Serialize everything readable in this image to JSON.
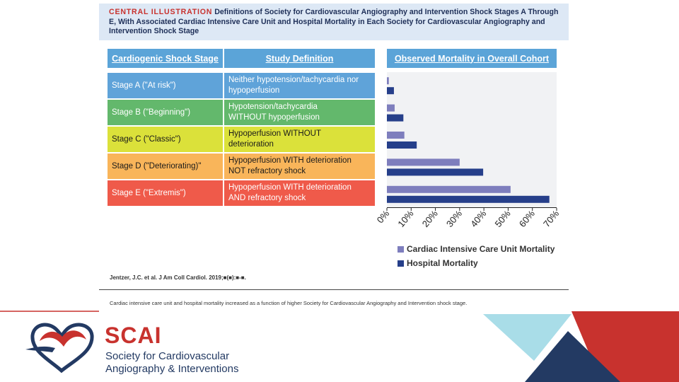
{
  "header": {
    "label": "CENTRAL ILLUSTRATION",
    "title": "Definitions of Society for Cardiovascular Angiography and Intervention Shock Stages A Through E, With Associated Cardiac Intensive Care Unit and Hospital Mortality in Each Society for Cardiovascular Angiography and Intervention Shock Stage"
  },
  "table": {
    "headers": [
      "Cardiogenic Shock Stage",
      "Study Definition"
    ],
    "rows": [
      {
        "stage": "Stage A (\"At risk\")",
        "def1": "Neither hypotension/tachycardia nor",
        "def2": "hypoperfusion",
        "color": "#5fa3d9",
        "text_color": "#ffffff"
      },
      {
        "stage": "Stage B (\"Beginning\")",
        "def1": "Hypotension/tachycardia",
        "def2": "WITHOUT hypoperfusion",
        "color": "#63b86c",
        "text_color": "#ffffff"
      },
      {
        "stage": "Stage C (\"Classic\")",
        "def1": "Hypoperfusion WITHOUT",
        "def2": "deterioration",
        "color": "#dbe13a",
        "text_color": "#1a1a1a"
      },
      {
        "stage": "Stage D (\"Deteriorating)\"",
        "def1": "Hypoperfusion WITH deterioration",
        "def2": "NOT refractory shock",
        "color": "#f9b55a",
        "text_color": "#1a1a1a"
      },
      {
        "stage": "Stage E (\"Extremis\")",
        "def1": "Hypoperfusion WITH deterioration",
        "def2": "AND refractory shock",
        "color": "#ef5a4a",
        "text_color": "#ffffff"
      }
    ]
  },
  "chart_data": {
    "type": "bar",
    "orientation": "horizontal",
    "title": "Observed Mortality in Overall Cohort",
    "categories": [
      "Stage A",
      "Stage B",
      "Stage C",
      "Stage D",
      "Stage E"
    ],
    "series": [
      {
        "name": "Cardiac Intensive Care Unit Mortality",
        "color": "#7e7ebd",
        "values": [
          0.8,
          3.2,
          7.2,
          30.0,
          51.0
        ]
      },
      {
        "name": "Hospital Mortality",
        "color": "#263f8a",
        "values": [
          2.9,
          6.8,
          12.3,
          39.7,
          67.0
        ]
      }
    ],
    "xlim": [
      0,
      70
    ],
    "xticks": [
      "0%",
      "10%",
      "20%",
      "30%",
      "40%",
      "50%",
      "60%",
      "70%"
    ],
    "legend_position": "bottom"
  },
  "citation": "Jentzer, J.C. et al. J Am Coll Cardiol. 2019;■(■):■-■.",
  "caption": "Cardiac intensive care unit and hospital mortality increased as a function of higher Society for Cardiovascular Angiography and Intervention shock stage.",
  "logo": {
    "name": "SCAI",
    "line1": "Society for Cardiovascular",
    "line2": "Angiography & Interventions"
  },
  "colors": {
    "header_bg": "#dde8f5",
    "column_header": "#5ba4d8",
    "brand_red": "#c8322e",
    "brand_navy": "#233a63",
    "light_blue": "#a9dde8"
  }
}
